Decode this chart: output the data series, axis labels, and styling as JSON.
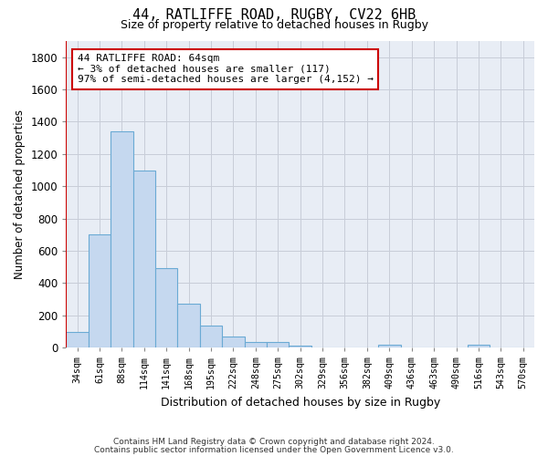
{
  "title1": "44, RATLIFFE ROAD, RUGBY, CV22 6HB",
  "title2": "Size of property relative to detached houses in Rugby",
  "xlabel": "Distribution of detached houses by size in Rugby",
  "ylabel": "Number of detached properties",
  "categories": [
    "34sqm",
    "61sqm",
    "88sqm",
    "114sqm",
    "141sqm",
    "168sqm",
    "195sqm",
    "222sqm",
    "248sqm",
    "275sqm",
    "302sqm",
    "329sqm",
    "356sqm",
    "382sqm",
    "409sqm",
    "436sqm",
    "463sqm",
    "490sqm",
    "516sqm",
    "543sqm",
    "570sqm"
  ],
  "values": [
    95,
    700,
    1340,
    1095,
    490,
    270,
    138,
    70,
    35,
    35,
    13,
    0,
    0,
    0,
    18,
    0,
    0,
    0,
    18,
    0,
    0
  ],
  "bar_color": "#c5d8ef",
  "bar_edge_color": "#6aaad4",
  "annotation_box_text": [
    "44 RATLIFFE ROAD: 64sqm",
    "← 3% of detached houses are smaller (117)",
    "97% of semi-detached houses are larger (4,152) →"
  ],
  "vline_color": "#cc0000",
  "box_edge_color": "#cc0000",
  "ylim": [
    0,
    1900
  ],
  "yticks": [
    0,
    200,
    400,
    600,
    800,
    1000,
    1200,
    1400,
    1600,
    1800
  ],
  "grid_color": "#c8cdd8",
  "bg_color": "#e8edf5",
  "fig_bg": "#ffffff",
  "footnote1": "Contains HM Land Registry data © Crown copyright and database right 2024.",
  "footnote2": "Contains public sector information licensed under the Open Government Licence v3.0."
}
